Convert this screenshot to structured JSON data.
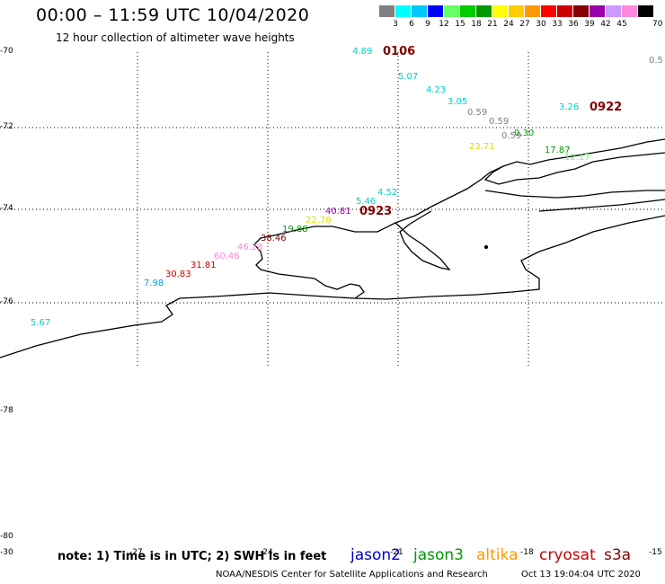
{
  "header": {
    "title": "00:00 – 11:59 UTC 10/04/2020",
    "subtitle": "12 hour collection of altimeter wave heights"
  },
  "colorbar": {
    "unit": "70 (ft)",
    "items": [
      {
        "label": "3",
        "color": "#808080"
      },
      {
        "label": "6",
        "color": "#00ffff"
      },
      {
        "label": "9",
        "color": "#00c8ff"
      },
      {
        "label": "12",
        "color": "#0000ff"
      },
      {
        "label": "15",
        "color": "#66ff66"
      },
      {
        "label": "18",
        "color": "#00cc00"
      },
      {
        "label": "21",
        "color": "#009900"
      },
      {
        "label": "24",
        "color": "#ffff00"
      },
      {
        "label": "27",
        "color": "#ffcc00"
      },
      {
        "label": "30",
        "color": "#ff9900"
      },
      {
        "label": "33",
        "color": "#ff0000"
      },
      {
        "label": "36",
        "color": "#cc0000"
      },
      {
        "label": "39",
        "color": "#880000"
      },
      {
        "label": "42",
        "color": "#9900aa"
      },
      {
        "label": "45",
        "color": "#cc99ff"
      },
      {
        "label": "",
        "color": "#ff88dd"
      },
      {
        "label": "",
        "color": "#000000"
      }
    ]
  },
  "axes": {
    "lat_labels": [
      "-70",
      "-72",
      "-74",
      "-76",
      "-78",
      "-80"
    ],
    "lon_labels": [
      "-30",
      "-27",
      "-24",
      "-21",
      "-18",
      "-15"
    ]
  },
  "observations": [
    {
      "text": "4.89",
      "color": "#00d0d0"
    },
    {
      "text": "5.07",
      "color": "#00d0d0"
    },
    {
      "text": "4.23",
      "color": "#00d0d0"
    },
    {
      "text": "3.05",
      "color": "#00d0d0"
    },
    {
      "text": "0.59",
      "color": "#808080"
    },
    {
      "text": "0.59",
      "color": "#808080"
    },
    {
      "text": "0.59",
      "color": "#808080"
    },
    {
      "text": "0.30",
      "color": "#009900"
    },
    {
      "text": "0.5",
      "color": "#808080"
    },
    {
      "text": "3.26",
      "color": "#00d0d0"
    },
    {
      "text": "23.71",
      "color": "#e0e000"
    },
    {
      "text": "17.87",
      "color": "#009900"
    },
    {
      "text": "12.17",
      "color": "#66ff66"
    },
    {
      "text": "4.52",
      "color": "#00d0d0"
    },
    {
      "text": "5.46",
      "color": "#00d0d0"
    },
    {
      "text": "40.81",
      "color": "#9900aa"
    },
    {
      "text": "22.78",
      "color": "#e0e000"
    },
    {
      "text": "19.88",
      "color": "#009900"
    },
    {
      "text": "38.46",
      "color": "#880000"
    },
    {
      "text": "46.28",
      "color": "#ff88dd"
    },
    {
      "text": "60.46",
      "color": "#ff88dd"
    },
    {
      "text": "31.81",
      "color": "#cc0000"
    },
    {
      "text": "30.83",
      "color": "#cc0000"
    },
    {
      "text": "7.98",
      "color": "#00a0d0"
    },
    {
      "text": "5.67",
      "color": "#00d0d0"
    }
  ],
  "pass_times": [
    "0106",
    "0922",
    "0923"
  ],
  "footer": {
    "note": "note: 1) Time is in UTC; 2) SWH is in feet",
    "satellites": [
      {
        "name": "jason2",
        "color": "#0000cc"
      },
      {
        "name": "jason3",
        "color": "#009900"
      },
      {
        "name": "altika",
        "color": "#ff9900"
      },
      {
        "name": "cryosat",
        "color": "#cc0000"
      },
      {
        "name": "s3a",
        "color": "#880000"
      }
    ],
    "credit": "NOAA/NESDIS Center for Satellite Applications and Research",
    "timestamp": "Oct 13 19:04:04 UTC 2020"
  }
}
